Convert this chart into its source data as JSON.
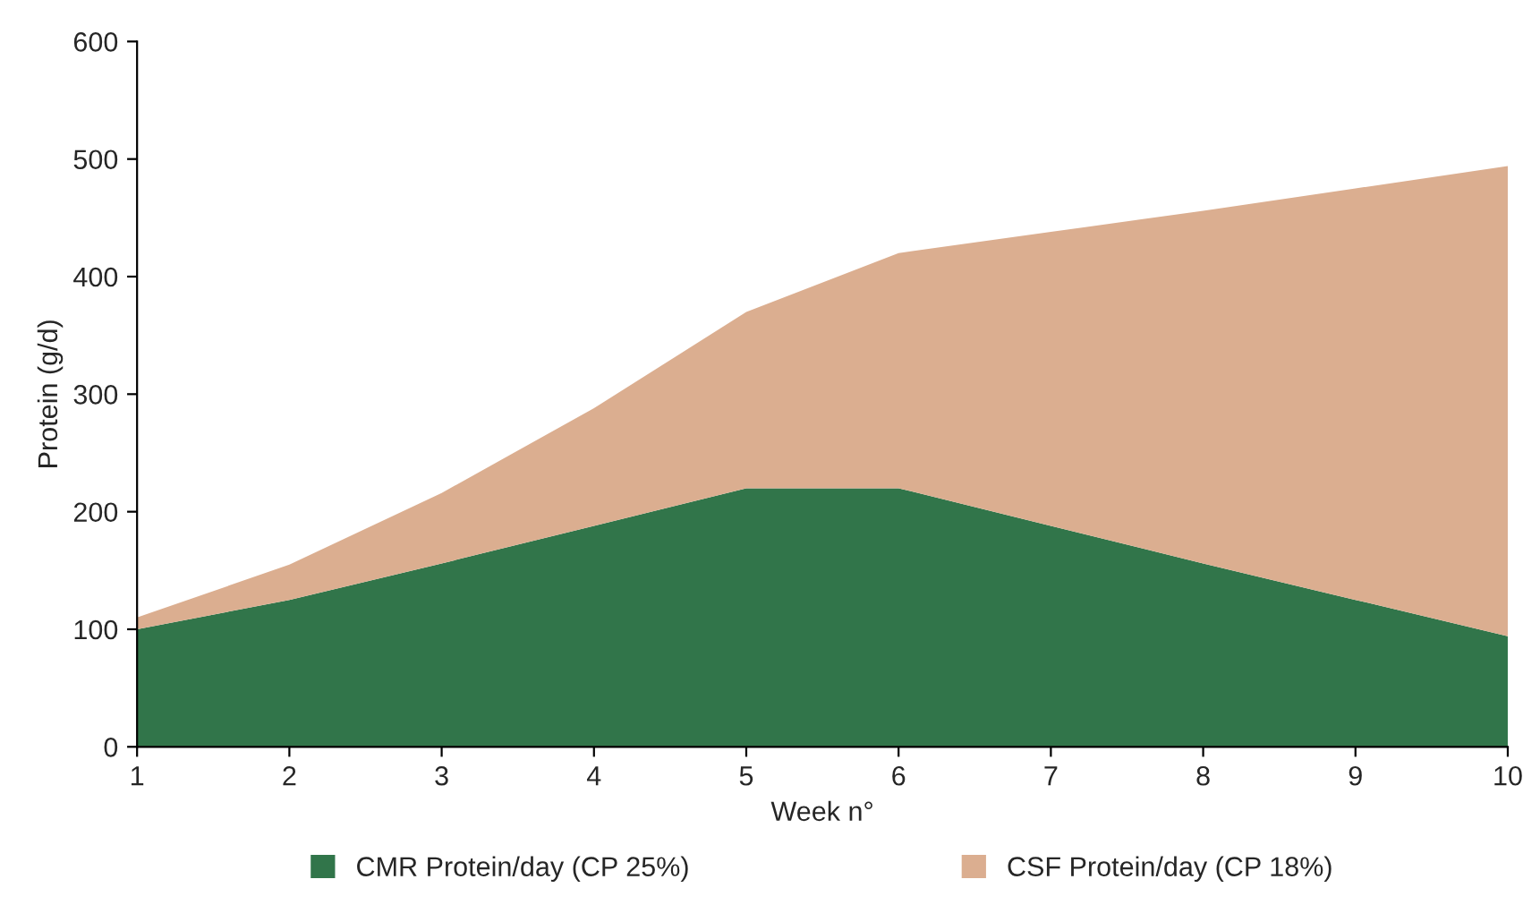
{
  "chart_data": {
    "type": "area",
    "stacked": true,
    "xlabel": "Week n°",
    "ylabel": "Protein (g/d)",
    "x": [
      1,
      2,
      3,
      4,
      5,
      6,
      7,
      8,
      9,
      10
    ],
    "series": [
      {
        "name": "CMR Protein/day (CP 25%)",
        "color": "#31754a",
        "values": [
          100,
          125,
          156,
          188,
          220,
          220,
          188,
          156,
          125,
          94
        ]
      },
      {
        "name": "CSF Protein/day (CP 18%)",
        "color": "#dbae90",
        "values": [
          10,
          30,
          60,
          100,
          150,
          200,
          250,
          300,
          350,
          400
        ]
      }
    ],
    "xlim": [
      1,
      10
    ],
    "xticks": [
      1,
      2,
      3,
      4,
      5,
      6,
      7,
      8,
      9,
      10
    ],
    "ylim": [
      0,
      600
    ],
    "yticks": [
      0,
      100,
      200,
      300,
      400,
      500,
      600
    ],
    "grid": false,
    "legend": "bottom"
  }
}
